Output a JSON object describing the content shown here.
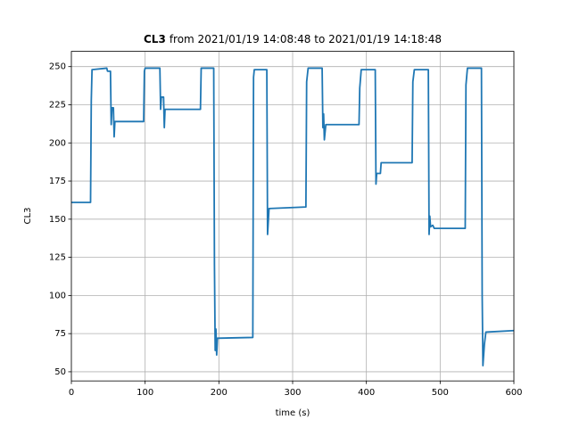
{
  "chart_data": {
    "type": "line",
    "title": [
      "CL3",
      "from 2021/01/19 14:08:48 to 2021/01/19 14:18:48"
    ],
    "xlabel": "time (s)",
    "ylabel": "CL3",
    "xlim": [
      0,
      600
    ],
    "ylim": [
      44,
      260
    ],
    "xticks": [
      0,
      100,
      200,
      300,
      400,
      500,
      600
    ],
    "yticks": [
      50,
      75,
      100,
      125,
      150,
      175,
      200,
      225,
      250
    ],
    "grid": true,
    "x": [
      0,
      26,
      27,
      28,
      48,
      49,
      53,
      54,
      55,
      57,
      58,
      59,
      98,
      99,
      100,
      120,
      121,
      122,
      125,
      126,
      127,
      175,
      176,
      193,
      194,
      195,
      196,
      197,
      198,
      246,
      247,
      248,
      265,
      266,
      268,
      318,
      319,
      321,
      340,
      341,
      342,
      343,
      345,
      390,
      391,
      393,
      412,
      413,
      414,
      419,
      420,
      462,
      463,
      465,
      484,
      485,
      486,
      487,
      490,
      492,
      534,
      535,
      537,
      556,
      557,
      558,
      560,
      562,
      600
    ],
    "series": [
      {
        "name": "CL3",
        "color": "#1f77b4",
        "values": [
          161,
          161,
          228,
          248,
          249,
          247,
          247,
          212,
          223,
          223,
          204,
          214,
          214,
          247,
          249,
          249,
          222,
          230,
          230,
          210,
          222,
          222,
          249,
          249,
          120,
          64,
          78,
          61,
          72,
          72.5,
          243,
          248,
          248,
          140,
          157,
          158,
          240,
          249,
          249,
          210,
          219,
          202,
          212,
          212,
          236,
          248,
          248,
          173,
          180,
          180,
          187,
          187,
          240,
          248,
          248,
          140,
          152,
          145,
          146,
          144,
          144,
          238,
          249,
          249,
          100,
          54,
          68,
          76,
          77
        ]
      }
    ]
  }
}
